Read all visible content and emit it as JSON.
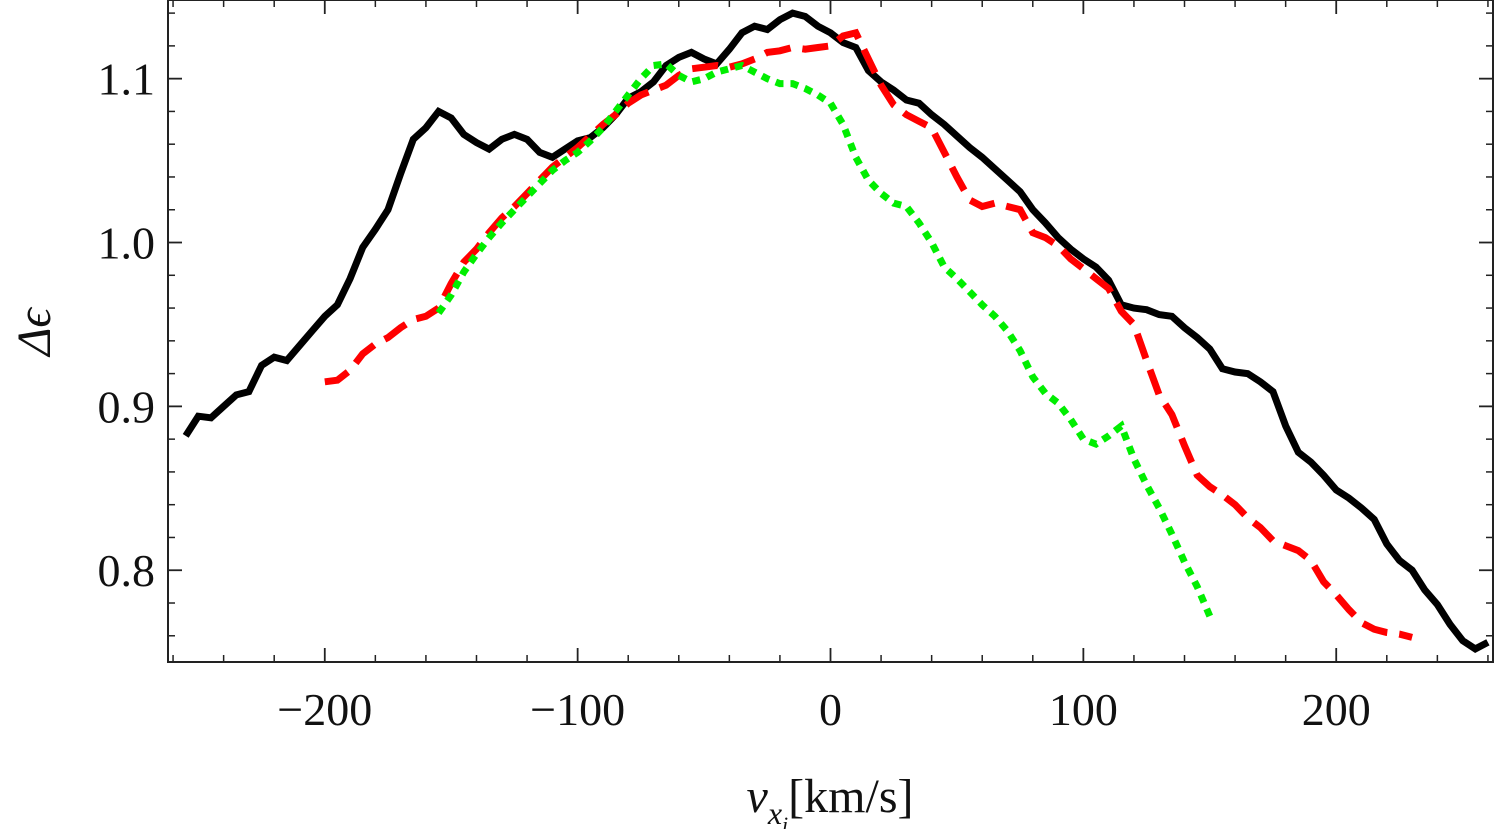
{
  "chart_data": {
    "type": "line",
    "title": "",
    "xlabel": {
      "symbol": "v",
      "subscript": "x",
      "sub_subscript": "i",
      "units": "[km/s]"
    },
    "ylabel": "Δϵ",
    "xlim": [
      -262,
      262
    ],
    "ylim": [
      0.744,
      1.148
    ],
    "grid": false,
    "legend": "none",
    "x_ticks": [
      -200,
      -100,
      0,
      100,
      200
    ],
    "x_tick_labels": [
      "−200",
      "−100",
      "0",
      "100",
      "200"
    ],
    "y_ticks": [
      0.8,
      0.9,
      1.0,
      1.1
    ],
    "y_tick_labels": [
      "0.8",
      "0.9",
      "1.0",
      "1.1"
    ],
    "x_minor_step": 20,
    "y_minor_step": 0.02,
    "series": [
      {
        "name": "black-solid",
        "color": "#000000",
        "style": "solid",
        "x": [
          -255,
          -250,
          -245,
          -240,
          -235,
          -230,
          -225,
          -220,
          -215,
          -210,
          -205,
          -200,
          -195,
          -190,
          -185,
          -180,
          -175,
          -170,
          -165,
          -160,
          -155,
          -150,
          -145,
          -140,
          -135,
          -130,
          -125,
          -120,
          -115,
          -110,
          -105,
          -100,
          -95,
          -90,
          -85,
          -80,
          -75,
          -70,
          -65,
          -60,
          -55,
          -50,
          -45,
          -40,
          -35,
          -30,
          -25,
          -20,
          -15,
          -10,
          -5,
          0,
          5,
          10,
          15,
          20,
          25,
          30,
          35,
          40,
          45,
          50,
          55,
          60,
          65,
          70,
          75,
          80,
          85,
          90,
          95,
          100,
          105,
          110,
          115,
          120,
          125,
          130,
          135,
          140,
          145,
          150,
          155,
          160,
          165,
          170,
          175,
          180,
          185,
          190,
          195,
          200,
          205,
          210,
          215,
          220,
          225,
          230,
          235,
          240,
          245,
          250,
          255,
          260
        ],
        "y": [
          0.882,
          0.894,
          0.893,
          0.9,
          0.907,
          0.909,
          0.925,
          0.93,
          0.928,
          0.937,
          0.946,
          0.955,
          0.962,
          0.978,
          0.997,
          1.008,
          1.02,
          1.042,
          1.063,
          1.07,
          1.08,
          1.076,
          1.066,
          1.061,
          1.057,
          1.063,
          1.066,
          1.063,
          1.055,
          1.052,
          1.057,
          1.062,
          1.064,
          1.07,
          1.078,
          1.088,
          1.092,
          1.098,
          1.108,
          1.113,
          1.116,
          1.112,
          1.109,
          1.118,
          1.128,
          1.132,
          1.13,
          1.136,
          1.14,
          1.138,
          1.132,
          1.128,
          1.122,
          1.119,
          1.105,
          1.098,
          1.093,
          1.087,
          1.085,
          1.078,
          1.072,
          1.065,
          1.058,
          1.052,
          1.045,
          1.038,
          1.031,
          1.02,
          1.012,
          1.003,
          0.996,
          0.99,
          0.985,
          0.977,
          0.962,
          0.96,
          0.959,
          0.956,
          0.955,
          0.948,
          0.942,
          0.935,
          0.923,
          0.921,
          0.92,
          0.915,
          0.909,
          0.888,
          0.872,
          0.866,
          0.858,
          0.849,
          0.844,
          0.838,
          0.831,
          0.816,
          0.806,
          0.8,
          0.788,
          0.779,
          0.767,
          0.757,
          0.752,
          0.756
        ]
      },
      {
        "name": "red-dashed",
        "color": "#ff0000",
        "style": "dashed",
        "x": [
          -200,
          -195,
          -190,
          -185,
          -180,
          -175,
          -170,
          -165,
          -160,
          -155,
          -150,
          -145,
          -140,
          -135,
          -130,
          -125,
          -120,
          -115,
          -110,
          -105,
          -100,
          -95,
          -90,
          -85,
          -80,
          -75,
          -70,
          -65,
          -60,
          -55,
          -50,
          -45,
          -40,
          -35,
          -30,
          -25,
          -20,
          -15,
          -10,
          -5,
          0,
          5,
          10,
          15,
          20,
          25,
          30,
          35,
          40,
          45,
          50,
          55,
          60,
          65,
          70,
          75,
          80,
          85,
          90,
          95,
          100,
          105,
          110,
          115,
          120,
          125,
          130,
          135,
          140,
          145,
          150,
          155,
          160,
          165,
          170,
          175,
          180,
          185,
          190,
          195,
          200,
          205,
          210,
          215,
          220,
          225,
          230
        ],
        "y": [
          0.915,
          0.916,
          0.922,
          0.932,
          0.938,
          0.942,
          0.948,
          0.953,
          0.955,
          0.96,
          0.975,
          0.988,
          0.996,
          1.006,
          1.015,
          1.022,
          1.03,
          1.038,
          1.046,
          1.052,
          1.058,
          1.065,
          1.072,
          1.078,
          1.085,
          1.09,
          1.093,
          1.096,
          1.102,
          1.106,
          1.107,
          1.108,
          1.107,
          1.109,
          1.112,
          1.116,
          1.117,
          1.119,
          1.118,
          1.119,
          1.12,
          1.126,
          1.128,
          1.112,
          1.096,
          1.084,
          1.078,
          1.074,
          1.07,
          1.055,
          1.04,
          1.026,
          1.022,
          1.024,
          1.022,
          1.02,
          1.006,
          1.003,
          0.998,
          0.99,
          0.984,
          0.978,
          0.972,
          0.958,
          0.95,
          0.928,
          0.907,
          0.895,
          0.876,
          0.858,
          0.851,
          0.846,
          0.84,
          0.832,
          0.826,
          0.818,
          0.815,
          0.812,
          0.806,
          0.793,
          0.785,
          0.776,
          0.768,
          0.764,
          0.762,
          0.761,
          0.759
        ]
      },
      {
        "name": "green-dotted",
        "color": "#00ee00",
        "style": "dotted",
        "x": [
          -155,
          -150,
          -145,
          -140,
          -135,
          -130,
          -125,
          -120,
          -115,
          -110,
          -105,
          -100,
          -95,
          -90,
          -85,
          -80,
          -75,
          -70,
          -65,
          -60,
          -55,
          -50,
          -45,
          -40,
          -35,
          -30,
          -25,
          -20,
          -15,
          -10,
          -5,
          0,
          5,
          10,
          15,
          20,
          25,
          30,
          35,
          40,
          45,
          50,
          55,
          60,
          65,
          70,
          75,
          80,
          85,
          90,
          95,
          100,
          105,
          110,
          115,
          120,
          125,
          130,
          135,
          140,
          145,
          150
        ],
        "y": [
          0.957,
          0.968,
          0.982,
          0.993,
          1.003,
          1.012,
          1.02,
          1.028,
          1.036,
          1.044,
          1.05,
          1.055,
          1.062,
          1.07,
          1.08,
          1.09,
          1.1,
          1.108,
          1.109,
          1.102,
          1.098,
          1.1,
          1.104,
          1.106,
          1.108,
          1.104,
          1.1,
          1.097,
          1.097,
          1.094,
          1.09,
          1.085,
          1.072,
          1.052,
          1.038,
          1.03,
          1.024,
          1.022,
          1.012,
          1.0,
          0.985,
          0.978,
          0.97,
          0.962,
          0.955,
          0.946,
          0.934,
          0.918,
          0.908,
          0.902,
          0.892,
          0.88,
          0.877,
          0.882,
          0.888,
          0.868,
          0.852,
          0.838,
          0.822,
          0.805,
          0.79,
          0.772
        ]
      }
    ]
  }
}
